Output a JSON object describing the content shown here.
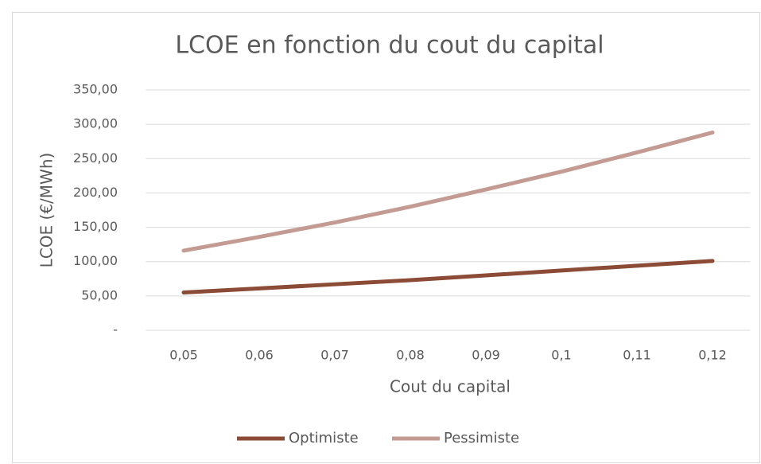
{
  "chart_data": {
    "type": "line",
    "title": "LCOE en fonction du cout du capital",
    "x_label": "Cout du capital",
    "y_label": "LCOE (€/MWh)",
    "categories": [
      "0,05",
      "0,06",
      "0,07",
      "0,08",
      "0,09",
      "0,1",
      "0,11",
      "0,12"
    ],
    "series": [
      {
        "name": "Optimiste",
        "color": "#8c4b36",
        "values": [
          55,
          61,
          67,
          73,
          80,
          87,
          94,
          101
        ]
      },
      {
        "name": "Pessimiste",
        "color": "#c49b92",
        "values": [
          116,
          136,
          157,
          180,
          205,
          231,
          259,
          288
        ]
      }
    ],
    "ylim": [
      0,
      350
    ],
    "yticks": [
      {
        "value": 0,
        "label": "-"
      },
      {
        "value": 50,
        "label": "50,00"
      },
      {
        "value": 100,
        "label": "100,00"
      },
      {
        "value": 150,
        "label": "150,00"
      },
      {
        "value": 200,
        "label": "200,00"
      },
      {
        "value": 250,
        "label": "250,00"
      },
      {
        "value": 300,
        "label": "300,00"
      },
      {
        "value": 350,
        "label": "350,00"
      }
    ],
    "grid": true,
    "legend": "bottom"
  }
}
